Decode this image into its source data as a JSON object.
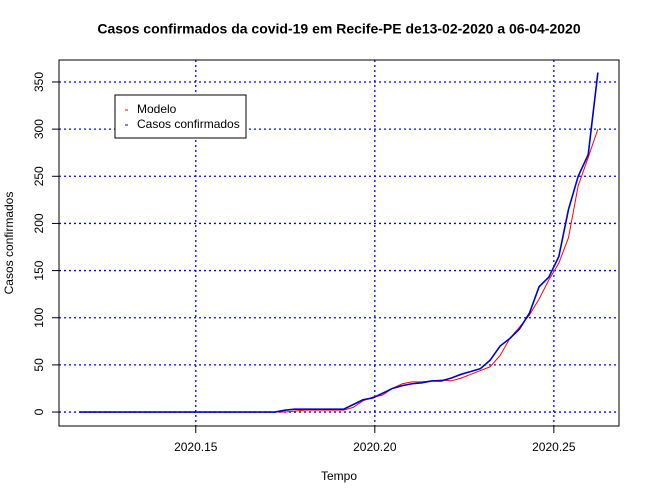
{
  "chart_data": {
    "type": "line",
    "title": "Casos confirmados da covid-19 em Recife-PE de13-02-2020 a 06-04-2020",
    "x_label": "Tempo",
    "y_label": "Casos confirmados",
    "x": [
      2020.1175,
      2020.1202,
      2020.123,
      2020.1257,
      2020.1284,
      2020.1312,
      2020.1339,
      2020.1366,
      2020.1394,
      2020.1421,
      2020.1448,
      2020.1476,
      2020.1503,
      2020.153,
      2020.1557,
      2020.1585,
      2020.1612,
      2020.1639,
      2020.1667,
      2020.1694,
      2020.1721,
      2020.1749,
      2020.1776,
      2020.1803,
      2020.1831,
      2020.1858,
      2020.1885,
      2020.1913,
      2020.194,
      2020.1967,
      2020.1995,
      2020.2022,
      2020.2049,
      2020.2077,
      2020.2104,
      2020.2131,
      2020.2159,
      2020.2186,
      2020.2213,
      2020.2241,
      2020.2268,
      2020.2295,
      2020.2322,
      2020.235,
      2020.2377,
      2020.2404,
      2020.2432,
      2020.2459,
      2020.2486,
      2020.2514,
      2020.2541,
      2020.2568,
      2020.2596,
      2020.2623
    ],
    "series": [
      {
        "name": "Modelo",
        "color": "#ff0000",
        "values": [
          0,
          0,
          0,
          0,
          0,
          0,
          0,
          0,
          0,
          0,
          0,
          0,
          0,
          0,
          0,
          0,
          0,
          0,
          0,
          0,
          0,
          0,
          1,
          2,
          2,
          2,
          2,
          2,
          5,
          12,
          16,
          18,
          25,
          30,
          32,
          32,
          33,
          34,
          33,
          36,
          40,
          44,
          48,
          60,
          78,
          90,
          103,
          120,
          140,
          158,
          185,
          240,
          270,
          300
        ]
      },
      {
        "name": "Casos confirmados",
        "color": "#0000cd",
        "values": [
          0,
          0,
          0,
          0,
          0,
          0,
          0,
          0,
          0,
          0,
          0,
          0,
          0,
          0,
          0,
          0,
          0,
          0,
          0,
          0,
          0,
          2,
          3,
          3,
          3,
          3,
          3,
          3,
          8,
          13,
          15,
          20,
          25,
          28,
          30,
          31,
          33,
          33,
          36,
          40,
          43,
          46,
          55,
          70,
          78,
          88,
          105,
          133,
          143,
          165,
          215,
          250,
          273,
          360
        ]
      }
    ],
    "xlim": [
      2020.1118,
      2020.2682
    ],
    "ylim": [
      -14.8,
      373.3
    ],
    "xticks": [
      {
        "value": 2020.15,
        "label": "2020.15"
      },
      {
        "value": 2020.2,
        "label": "2020.20"
      },
      {
        "value": 2020.25,
        "label": "2020.25"
      }
    ],
    "yticks": [
      0,
      50,
      100,
      150,
      200,
      250,
      300,
      350
    ],
    "grid": true,
    "legend": "top-left"
  }
}
